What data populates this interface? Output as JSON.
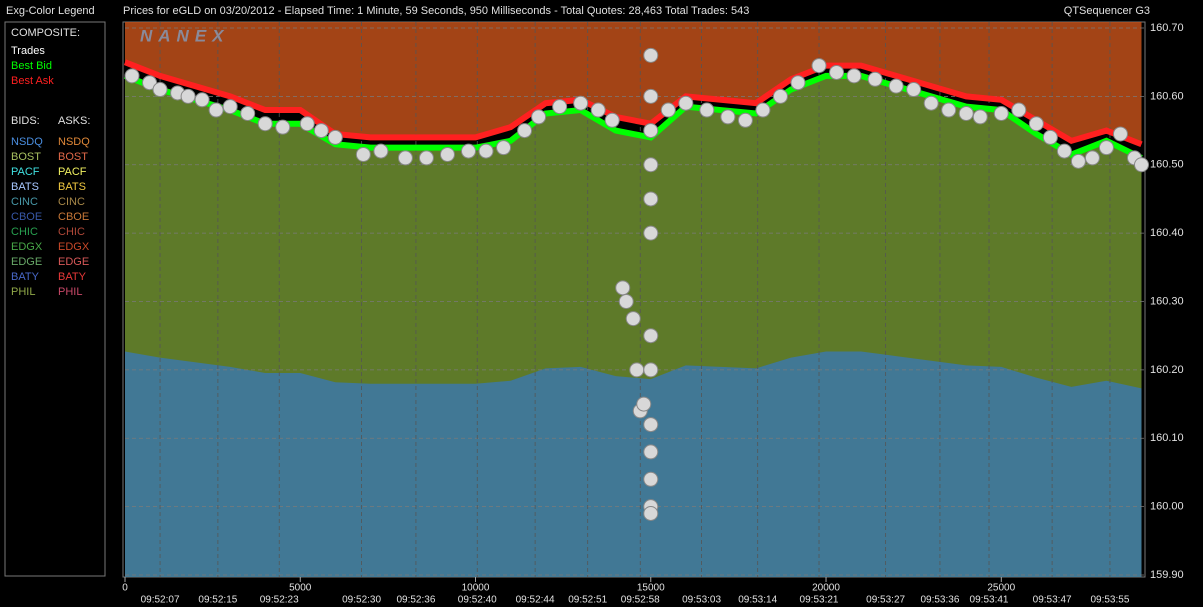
{
  "app_name": "QTSequencer G3",
  "watermark": "NANEX",
  "legend": {
    "title": "Exg-Color Legend",
    "composite": "COMPOSITE:",
    "bids_heading": "BIDS:",
    "asks_heading": "ASKS:",
    "bids": [
      {
        "name": "NSDQ",
        "color": "#4a8ee0"
      },
      {
        "name": "BOST",
        "color": "#a8c060"
      },
      {
        "name": "PACF",
        "color": "#40e0e0"
      },
      {
        "name": "BATS",
        "color": "#a8c8ff"
      },
      {
        "name": "CINC",
        "color": "#4898a8"
      },
      {
        "name": "CBOE",
        "color": "#3858a8"
      },
      {
        "name": "CHIC",
        "color": "#28a050"
      },
      {
        "name": "EDGX",
        "color": "#48a848"
      },
      {
        "name": "EDGE",
        "color": "#68a868"
      },
      {
        "name": "BATY",
        "color": "#4868c8"
      },
      {
        "name": "PHIL",
        "color": "#90a848"
      }
    ],
    "asks": [
      {
        "name": "NSDQ",
        "color": "#e08838"
      },
      {
        "name": "BOST",
        "color": "#e06848"
      },
      {
        "name": "PACF",
        "color": "#f0f060"
      },
      {
        "name": "BATS",
        "color": "#f0c840"
      },
      {
        "name": "CINC",
        "color": "#a88848"
      },
      {
        "name": "CBOE",
        "color": "#c87838"
      },
      {
        "name": "CHIC",
        "color": "#b04838"
      },
      {
        "name": "EDGX",
        "color": "#c84828"
      },
      {
        "name": "EDGE",
        "color": "#d85858"
      },
      {
        "name": "BATY",
        "color": "#e83838"
      },
      {
        "name": "PHIL",
        "color": "#c84868"
      }
    ]
  },
  "chart_data": {
    "type": "scatter",
    "title": "Prices for  eGLD  on  03/20/2012  -  Elapsed Time: 1 Minute, 59 Seconds, 950 Milliseconds  -  Total Quotes: 28,463  Total Trades: 543",
    "xlim": [
      0,
      29100
    ],
    "xticks": [
      0,
      5000,
      10000,
      15000,
      20000,
      25000
    ],
    "time_ticks": [
      {
        "value": 1000,
        "label": "09:52:07"
      },
      {
        "value": 2650,
        "label": "09:52:15"
      },
      {
        "value": 4400,
        "label": "09:52:23"
      },
      {
        "value": 6750,
        "label": "09:52:30"
      },
      {
        "value": 8300,
        "label": "09:52:36"
      },
      {
        "value": 10050,
        "label": "09:52:40"
      },
      {
        "value": 11700,
        "label": "09:52:44"
      },
      {
        "value": 13200,
        "label": "09:52:51"
      },
      {
        "value": 14700,
        "label": "09:52:58"
      },
      {
        "value": 16450,
        "label": "09:53:03"
      },
      {
        "value": 18050,
        "label": "09:53:14"
      },
      {
        "value": 19800,
        "label": "09:53:21"
      },
      {
        "value": 21700,
        "label": "09:53:27"
      },
      {
        "value": 23250,
        "label": "09:53:36"
      },
      {
        "value": 24650,
        "label": "09:53:41"
      },
      {
        "value": 26450,
        "label": "09:53:47"
      },
      {
        "value": 28100,
        "label": "09:53:55"
      }
    ],
    "ylim": [
      159.9,
      160.7
    ],
    "yticks": [
      {
        "value": 159.9,
        "label": "159.90"
      },
      {
        "value": 160.0,
        "label": "160.00"
      },
      {
        "value": 160.1,
        "label": "160.10"
      },
      {
        "value": 160.2,
        "label": "160.20"
      },
      {
        "value": 160.3,
        "label": "160.30"
      },
      {
        "value": 160.4,
        "label": "160.40"
      },
      {
        "value": 160.5,
        "label": "160.50"
      },
      {
        "value": 160.6,
        "label": "160.60"
      },
      {
        "value": 160.7,
        "label": "160.70"
      }
    ],
    "grid": true,
    "series": [
      {
        "name": "Trades",
        "color": "#ffffff",
        "x": [
          200,
          700,
          1000,
          1500,
          1800,
          2200,
          2600,
          3000,
          3500,
          4000,
          4500,
          5200,
          5600,
          6000,
          6800,
          7300,
          8000,
          8600,
          9200,
          9800,
          10300,
          10800,
          11400,
          11800,
          12400,
          13000,
          13500,
          13900,
          14200,
          14300,
          14500,
          14600,
          14700,
          14800,
          15000,
          15000,
          15000,
          15000,
          15000,
          15000,
          15000,
          15000,
          15000,
          15000,
          15000,
          15000,
          15000,
          15500,
          16000,
          16600,
          17200,
          17700,
          18200,
          18700,
          19200,
          19800,
          20300,
          20800,
          21400,
          22000,
          22500,
          23000,
          23500,
          24000,
          24400,
          25000,
          25500,
          26000,
          26400,
          26800,
          27200,
          27600,
          28000,
          28400,
          28800,
          29000
        ],
        "values": [
          160.63,
          160.62,
          160.61,
          160.605,
          160.6,
          160.595,
          160.58,
          160.585,
          160.575,
          160.56,
          160.555,
          160.56,
          160.55,
          160.54,
          160.515,
          160.52,
          160.51,
          160.51,
          160.515,
          160.52,
          160.52,
          160.525,
          160.55,
          160.57,
          160.585,
          160.59,
          160.58,
          160.565,
          160.32,
          160.3,
          160.275,
          160.2,
          160.14,
          160.15,
          160.66,
          160.6,
          160.55,
          160.5,
          160.45,
          160.4,
          160.25,
          160.2,
          160.12,
          160.08,
          160.04,
          160.0,
          159.99,
          160.58,
          160.59,
          160.58,
          160.57,
          160.565,
          160.58,
          160.6,
          160.62,
          160.645,
          160.635,
          160.63,
          160.625,
          160.615,
          160.61,
          160.59,
          160.58,
          160.575,
          160.57,
          160.575,
          160.58,
          160.56,
          160.54,
          160.52,
          160.505,
          160.51,
          160.525,
          160.545,
          160.51,
          160.5
        ]
      },
      {
        "name": "Best Bid",
        "color": "#00ff00",
        "x": [
          0,
          1000,
          2000,
          3000,
          4000,
          5000,
          6000,
          7000,
          8000,
          9000,
          10000,
          11000,
          12000,
          13000,
          14000,
          15000,
          16000,
          17000,
          18000,
          19000,
          20000,
          21000,
          22000,
          23000,
          24000,
          25000,
          26000,
          27000,
          28000,
          29000
        ],
        "values": [
          160.63,
          160.61,
          160.595,
          160.58,
          160.56,
          160.56,
          160.53,
          160.525,
          160.525,
          160.525,
          160.525,
          160.535,
          160.575,
          160.58,
          160.55,
          160.54,
          160.585,
          160.58,
          160.575,
          160.61,
          160.63,
          160.63,
          160.615,
          160.6,
          160.585,
          160.58,
          160.545,
          160.515,
          160.535,
          160.51
        ]
      },
      {
        "name": "Best Ask",
        "color": "#ff2020",
        "x": [
          0,
          1000,
          2000,
          3000,
          4000,
          5000,
          6000,
          7000,
          8000,
          9000,
          10000,
          11000,
          12000,
          13000,
          14000,
          15000,
          16000,
          17000,
          18000,
          19000,
          20000,
          21000,
          22000,
          23000,
          24000,
          25000,
          26000,
          27000,
          28000,
          29000
        ],
        "values": [
          160.65,
          160.63,
          160.615,
          160.6,
          160.58,
          160.58,
          160.545,
          160.54,
          160.54,
          160.54,
          160.54,
          160.555,
          160.59,
          160.595,
          160.57,
          160.56,
          160.6,
          160.595,
          160.59,
          160.625,
          160.645,
          160.645,
          160.63,
          160.615,
          160.6,
          160.595,
          160.565,
          160.535,
          160.55,
          160.53
        ]
      }
    ]
  }
}
